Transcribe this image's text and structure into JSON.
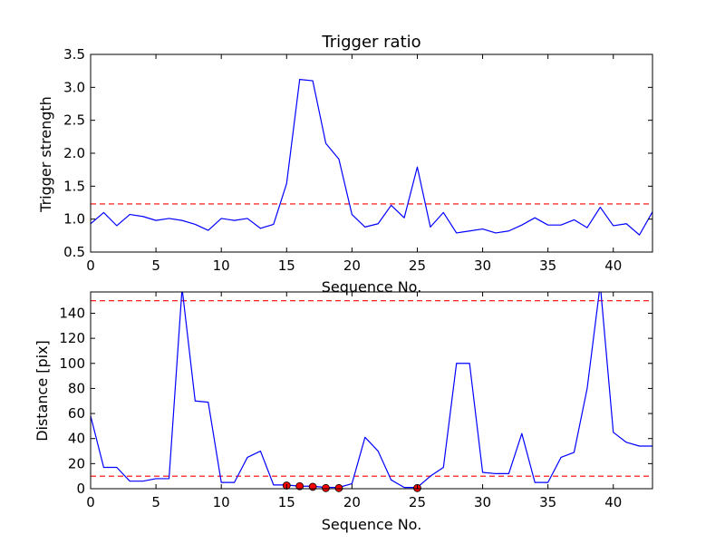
{
  "chart_data": [
    {
      "type": "line",
      "title": "Trigger ratio",
      "xlabel": "Sequence No.",
      "ylabel": "Trigger strength",
      "xlim": [
        0,
        43
      ],
      "ylim": [
        0.5,
        3.5
      ],
      "xticks": [
        0,
        5,
        10,
        15,
        20,
        25,
        30,
        35,
        40
      ],
      "xtick_labels": [
        "0",
        "5",
        "10",
        "15",
        "20",
        "25",
        "30",
        "35",
        "40"
      ],
      "yticks": [
        0.5,
        1.0,
        1.5,
        2.0,
        2.5,
        3.0,
        3.5
      ],
      "ytick_labels": [
        "0.5",
        "1.0",
        "1.5",
        "2.0",
        "2.5",
        "3.0",
        "3.5"
      ],
      "grid": false,
      "line_color": "#0000ff",
      "threshold_color": "#ff0000",
      "series": [
        {
          "x": [
            0,
            1,
            2,
            3,
            4,
            5,
            6,
            7,
            8,
            9,
            10,
            11,
            12,
            13,
            14,
            15,
            16,
            17,
            18,
            19,
            20,
            21,
            22,
            23,
            24,
            25,
            26,
            27,
            28,
            29,
            30,
            31,
            32,
            33,
            34,
            35,
            36,
            37,
            38,
            39,
            40,
            41,
            42,
            43
          ],
          "values": [
            0.93,
            1.1,
            0.9,
            1.07,
            1.04,
            0.98,
            1.01,
            0.98,
            0.92,
            0.83,
            1.01,
            0.98,
            1.01,
            0.86,
            0.92,
            1.54,
            3.12,
            3.1,
            2.15,
            1.91,
            1.07,
            0.88,
            0.93,
            1.21,
            1.02,
            1.79,
            0.88,
            1.1,
            0.79,
            0.82,
            0.85,
            0.79,
            0.82,
            0.91,
            1.02,
            0.91,
            0.91,
            0.99,
            0.87,
            1.18,
            0.9,
            0.93,
            0.76,
            1.11
          ]
        }
      ],
      "thresholds": [
        1.23
      ]
    },
    {
      "type": "line",
      "title": "",
      "xlabel": "Sequence No.",
      "ylabel": "Distance [pix]",
      "xlim": [
        0,
        43
      ],
      "ylim": [
        0,
        157
      ],
      "xticks": [
        0,
        5,
        10,
        15,
        20,
        25,
        30,
        35,
        40
      ],
      "xtick_labels": [
        "0",
        "5",
        "10",
        "15",
        "20",
        "25",
        "30",
        "35",
        "40"
      ],
      "yticks": [
        0,
        20,
        40,
        60,
        80,
        100,
        120,
        140
      ],
      "ytick_labels": [
        "0",
        "20",
        "40",
        "60",
        "80",
        "100",
        "120",
        "140"
      ],
      "grid": false,
      "line_color": "#0000ff",
      "threshold_color": "#ff0000",
      "marker_color": "#ff0000",
      "series": [
        {
          "x": [
            0,
            1,
            2,
            3,
            4,
            5,
            6,
            7,
            8,
            9,
            10,
            11,
            12,
            13,
            14,
            15,
            16,
            17,
            18,
            19,
            20,
            21,
            22,
            23,
            24,
            25,
            26,
            27,
            28,
            29,
            30,
            31,
            32,
            33,
            34,
            35,
            36,
            37,
            38,
            39,
            40,
            41,
            42,
            43
          ],
          "values": [
            58,
            17,
            17,
            6,
            6,
            8,
            8,
            160,
            70,
            69,
            5,
            5,
            25,
            30,
            3,
            3,
            2,
            2,
            1,
            1,
            4,
            41,
            30,
            7,
            1,
            1,
            10,
            17,
            100,
            100,
            13,
            12,
            12,
            44,
            5,
            5,
            25,
            29,
            80,
            163,
            45,
            37,
            34,
            34
          ]
        }
      ],
      "markers": {
        "x": [
          15,
          16,
          17,
          18,
          19,
          25
        ],
        "values": [
          2.5,
          2,
          1.5,
          0.5,
          0.5,
          0.5
        ]
      },
      "thresholds": [
        150,
        10
      ]
    }
  ]
}
